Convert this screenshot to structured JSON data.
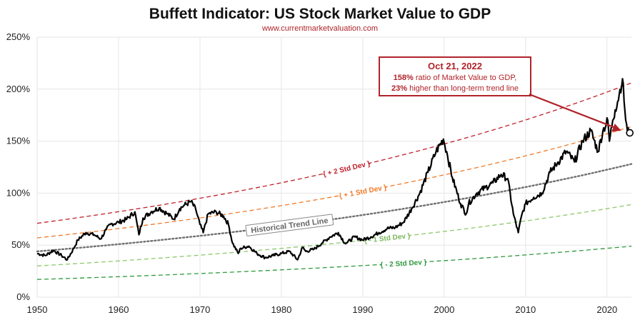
{
  "title": "Buffett Indicator: US Stock Market Value to GDP",
  "subtitle": "www.currentmarketvaluation.com",
  "chart_data": {
    "type": "line",
    "xlim": [
      1950,
      2023
    ],
    "ylim": [
      0,
      250
    ],
    "y_ticks": [
      0,
      50,
      100,
      150,
      200,
      250
    ],
    "y_tick_labels": [
      "0%",
      "50%",
      "100%",
      "150%",
      "200%",
      "250%"
    ],
    "x_ticks": [
      1950,
      1960,
      1970,
      1980,
      1990,
      2000,
      2010,
      2020
    ],
    "x_tick_labels": [
      "1950",
      "1960",
      "1970",
      "1980",
      "1990",
      "2000",
      "2010",
      "2020"
    ],
    "grid": true,
    "colors": {
      "series": "#000000",
      "plus2": "#c0202a",
      "plus1": "#f07a2a",
      "trend": "#707070",
      "minus1": "#8cc96a",
      "minus2": "#2e9a3e",
      "annotation": "#b0232a"
    },
    "bands": [
      {
        "key": "plus2",
        "label": "+ 2 Std Dev",
        "x": [
          1950,
          2023
        ],
        "y": [
          71,
          206
        ],
        "style": "dashed",
        "label_x": 1988
      },
      {
        "key": "plus1",
        "label": "+ 1 Std Dev",
        "x": [
          1950,
          2023
        ],
        "y": [
          57,
          164
        ],
        "style": "dashed",
        "label_x": 1990
      },
      {
        "key": "trend",
        "label": "Historical Trend Line",
        "x": [
          1950,
          2023
        ],
        "y": [
          44,
          128
        ],
        "style": "dotted",
        "label_x": 1981
      },
      {
        "key": "minus1",
        "label": "- 1 Std Dev",
        "x": [
          1950,
          2023
        ],
        "y": [
          30,
          89
        ],
        "style": "dashed",
        "label_x": 1993
      },
      {
        "key": "minus2",
        "label": "- 2 Std Dev",
        "x": [
          1950,
          2023
        ],
        "y": [
          17,
          49
        ],
        "style": "dashed",
        "label_x": 1995
      }
    ],
    "series": [
      {
        "x": [
          1950,
          1951,
          1952,
          1953,
          1953.7,
          1954.5,
          1955,
          1956,
          1957,
          1957.8,
          1958.5,
          1959,
          1960,
          1961,
          1962,
          1962.5,
          1963,
          1964,
          1965,
          1966,
          1966.8,
          1967.5,
          1968,
          1968.9,
          1969.5,
          1970,
          1970.4,
          1971,
          1972,
          1972.9,
          1973.5,
          1974,
          1974.7,
          1975,
          1976,
          1977,
          1978,
          1979,
          1980,
          1981,
          1982,
          1982.6,
          1983,
          1984,
          1985,
          1986,
          1987,
          1987.8,
          1988,
          1989,
          1990,
          1991,
          1992,
          1993,
          1994,
          1995,
          1996,
          1997,
          1998,
          1999,
          1999.9,
          2000.3,
          2001,
          2002,
          2002.7,
          2003,
          2004,
          2005,
          2006,
          2007,
          2007.8,
          2008.5,
          2009.1,
          2009.5,
          2010,
          2011,
          2012,
          2013,
          2014,
          2015,
          2016,
          2017,
          2018,
          2018.9,
          2019.5,
          2020.1,
          2020.3,
          2020.7,
          2021,
          2021.5,
          2021.9,
          2022.3,
          2022.5,
          2022.8
        ],
        "values": [
          42,
          40,
          45,
          40,
          36,
          47,
          55,
          62,
          60,
          56,
          65,
          70,
          72,
          75,
          82,
          60,
          76,
          82,
          86,
          80,
          75,
          85,
          88,
          92,
          84,
          70,
          62,
          80,
          82,
          78,
          70,
          52,
          42,
          47,
          49,
          42,
          38,
          40,
          42,
          44,
          36,
          48,
          44,
          46,
          52,
          58,
          62,
          52,
          52,
          58,
          55,
          58,
          62,
          66,
          67,
          72,
          85,
          100,
          120,
          140,
          152,
          140,
          115,
          90,
          80,
          90,
          100,
          105,
          110,
          118,
          114,
          80,
          62,
          78,
          90,
          96,
          100,
          120,
          130,
          140,
          130,
          150,
          160,
          140,
          160,
          170,
          150,
          170,
          180,
          195,
          210,
          170,
          160,
          158
        ]
      }
    ],
    "marker": {
      "x": 2022.8,
      "y": 158
    },
    "annotation": {
      "date": "Oct 21, 2022",
      "line1_bold": "158%",
      "line1_rest": " ratio of Market Value to GDP,",
      "line2_bold": "23%",
      "line2_rest": " higher than long-term trend line"
    }
  }
}
